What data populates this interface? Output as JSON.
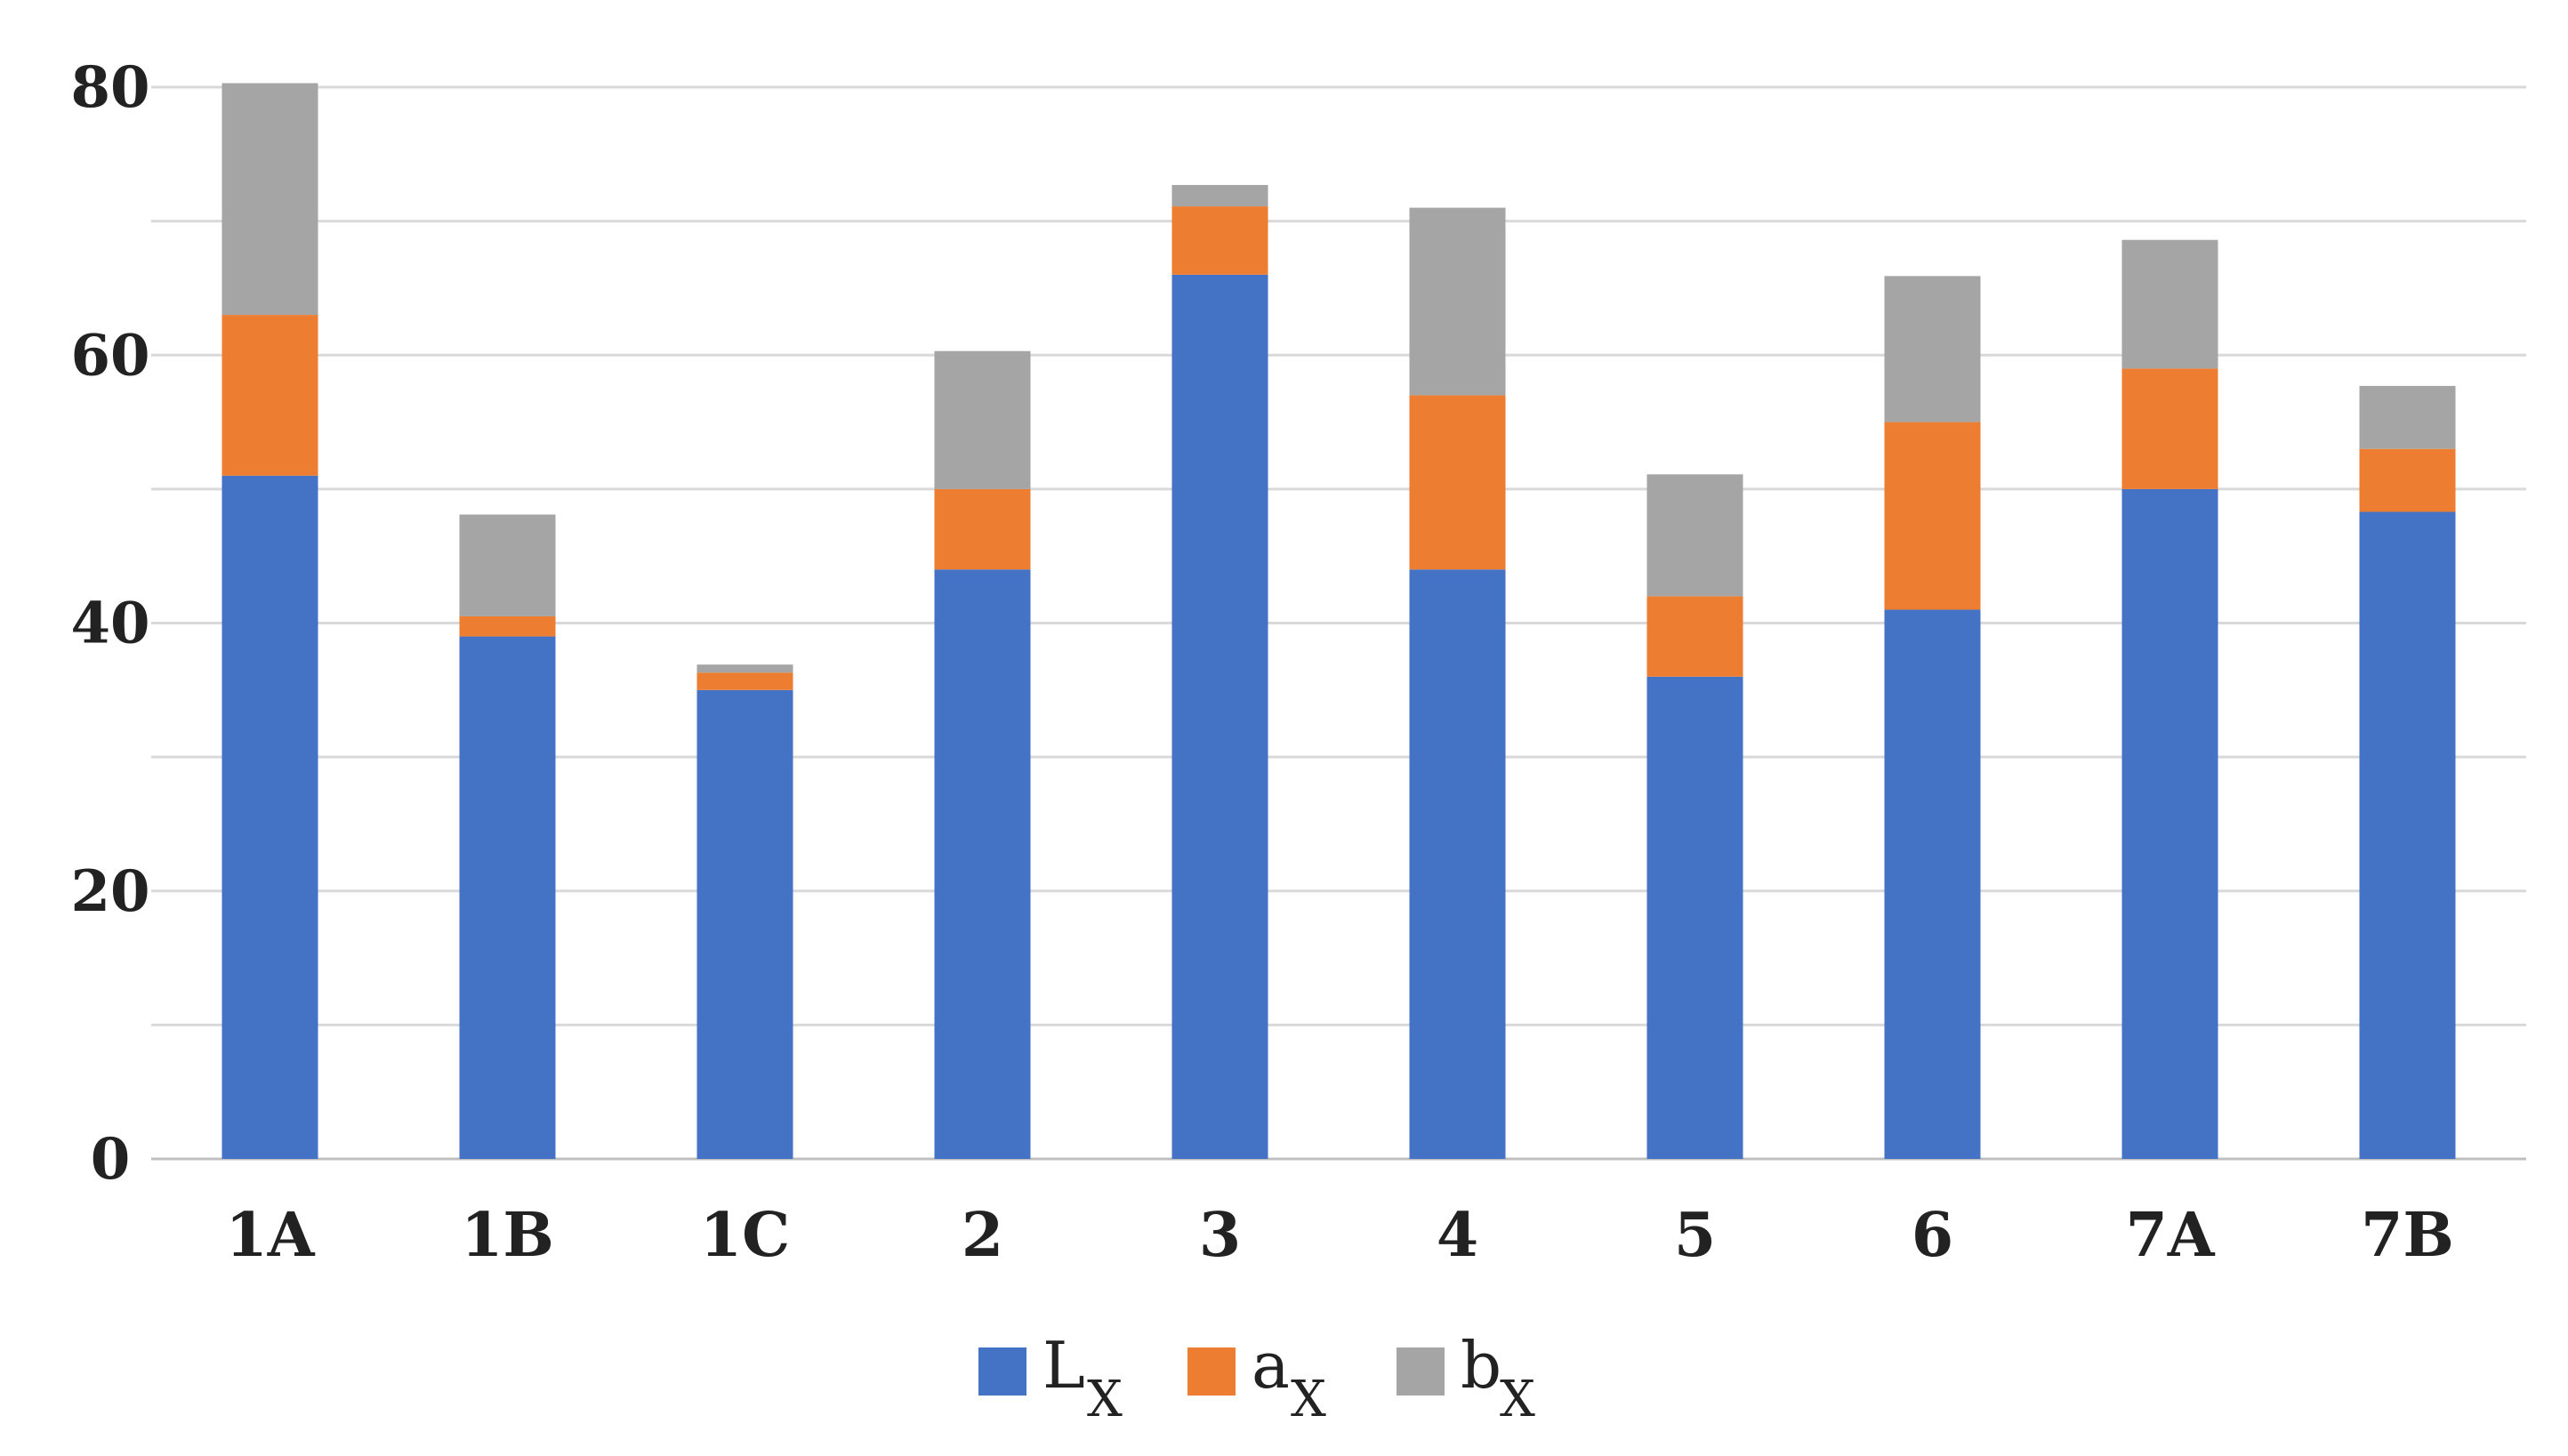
{
  "chart_data": {
    "type": "bar",
    "stacked": true,
    "categories": [
      "1A",
      "1B",
      "1C",
      "2",
      "3",
      "4",
      "5",
      "6",
      "7A",
      "7B"
    ],
    "series": [
      {
        "name": "L",
        "subscript": "X",
        "color": "#4472C4",
        "values": [
          51,
          39,
          35,
          44,
          66,
          44,
          36,
          41,
          50,
          48.3
        ]
      },
      {
        "name": "a",
        "subscript": "X",
        "color": "#ED7D31",
        "values": [
          12,
          1.5,
          1.3,
          6,
          5.1,
          13,
          6,
          14,
          9,
          4.7
        ]
      },
      {
        "name": "b",
        "subscript": "X",
        "color": "#A5A5A5",
        "values": [
          17.3,
          7.6,
          0.6,
          10.3,
          1.6,
          14,
          9.1,
          10.9,
          9.6,
          4.7
        ]
      }
    ],
    "ylim": [
      0,
      80
    ],
    "yticks": [
      0,
      20,
      40,
      60,
      80
    ],
    "gridlines": [
      0,
      10,
      20,
      30,
      40,
      50,
      60,
      70,
      80
    ],
    "grid": true,
    "legend": "bottom"
  }
}
